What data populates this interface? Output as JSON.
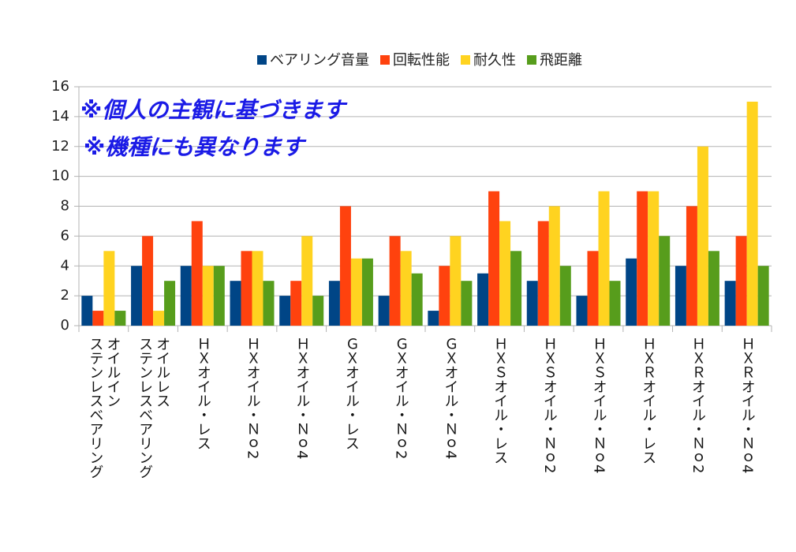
{
  "chart_data": {
    "type": "bar",
    "annotations": [
      "※個人の主観に基づきます",
      "※機種にも異なります"
    ],
    "categories": [
      "オイルイン\nステンレスベアリング",
      "オイルレス\nステンレスベアリング",
      "ＨＸオイル・レス",
      "ＨＸオイル・Ｎｏ2",
      "ＨＸオイル・Ｎｏ4",
      "ＧＸオイル・レス",
      "ＧＸオイル・Ｎｏ2",
      "ＧＸオイル・Ｎｏ4",
      "ＨＸＳオイル・レス",
      "ＨＸＳオイル・Ｎｏ2",
      "ＨＸＳオイル・Ｎｏ4",
      "ＨＸＲオイル・レス",
      "ＨＸＲオイル・Ｎｏ2",
      "ＨＸＲオイル・Ｎｏ4"
    ],
    "series": [
      {
        "name": "ベアリング音量",
        "color": "#004586",
        "values": [
          2,
          4,
          4,
          3,
          2,
          3,
          2,
          1,
          3.5,
          3,
          2,
          4.5,
          4,
          3
        ]
      },
      {
        "name": "回転性能",
        "color": "#ff420e",
        "values": [
          1,
          6,
          7,
          5,
          3,
          8,
          6,
          4,
          9,
          7,
          5,
          9,
          8,
          6
        ]
      },
      {
        "name": "耐久性",
        "color": "#ffd320",
        "values": [
          5,
          1,
          4,
          5,
          6,
          4.5,
          5,
          6,
          7,
          8,
          9,
          9,
          12,
          15
        ]
      },
      {
        "name": "飛距離",
        "color": "#579d1c",
        "values": [
          1,
          3,
          4,
          3,
          2,
          4.5,
          3.5,
          3,
          5,
          4,
          3,
          6,
          5,
          4
        ]
      }
    ],
    "ylim": [
      0,
      16
    ],
    "yticks": [
      0,
      2,
      4,
      6,
      8,
      10,
      12,
      14,
      16
    ],
    "grid": true,
    "legend": "top"
  }
}
